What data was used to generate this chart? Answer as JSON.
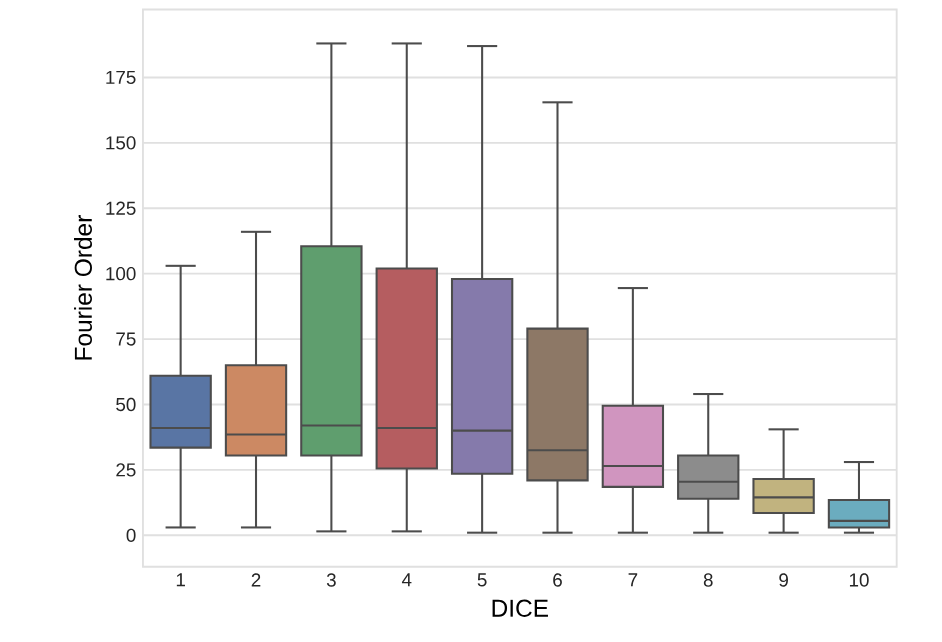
{
  "chart_data": {
    "type": "box",
    "xlabel": "DICE",
    "ylabel": "Fourier Order",
    "categories": [
      "1",
      "2",
      "3",
      "4",
      "5",
      "6",
      "7",
      "8",
      "9",
      "10"
    ],
    "colors": [
      "#5975a4",
      "#cc8963",
      "#5f9e6e",
      "#b55d60",
      "#857aab",
      "#8d7866",
      "#d095bf",
      "#8c8c8c",
      "#c1b37f",
      "#6bacbf"
    ],
    "boxes": [
      {
        "low": 3,
        "q1": 33.5,
        "median": 41,
        "q3": 61,
        "high": 103
      },
      {
        "low": 3,
        "q1": 30.5,
        "median": 38.5,
        "q3": 65,
        "high": 116
      },
      {
        "low": 1.5,
        "q1": 30.5,
        "median": 42,
        "q3": 110.5,
        "high": 188
      },
      {
        "low": 1.5,
        "q1": 25.5,
        "median": 41,
        "q3": 102,
        "high": 188
      },
      {
        "low": 1,
        "q1": 23.5,
        "median": 40,
        "q3": 98,
        "high": 187
      },
      {
        "low": 1,
        "q1": 21,
        "median": 32.5,
        "q3": 79,
        "high": 165.5
      },
      {
        "low": 1,
        "q1": 18.5,
        "median": 26.5,
        "q3": 49.5,
        "high": 94.5
      },
      {
        "low": 1,
        "q1": 14,
        "median": 20.5,
        "q3": 30.5,
        "high": 54
      },
      {
        "low": 1,
        "q1": 8.5,
        "median": 14.5,
        "q3": 21.5,
        "high": 40.5
      },
      {
        "low": 1,
        "q1": 3,
        "median": 5.5,
        "q3": 13.5,
        "high": 28
      }
    ],
    "ylim": [
      -12,
      201
    ],
    "yticks": [
      0,
      25,
      50,
      75,
      100,
      125,
      150,
      175
    ],
    "grid": "y"
  }
}
